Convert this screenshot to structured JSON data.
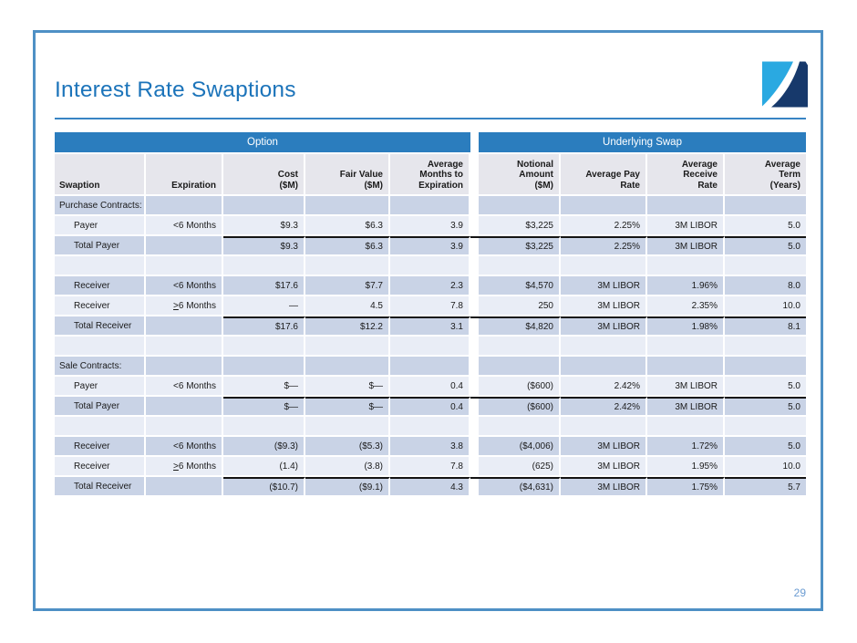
{
  "page": {
    "title": "Interest Rate Swaptions",
    "page_number": "29"
  },
  "colors": {
    "accent_blue": "#2B7DBE",
    "title_blue": "#1C74BA",
    "frame_blue": "#4E90C5",
    "row_dark": "#C9D3E6",
    "row_light": "#E9EDF6",
    "header_gray": "#E6E6EC",
    "logo_light_blue": "#2AA9E1",
    "logo_navy": "#17396B",
    "page_number_blue": "#6B9CD2"
  },
  "table": {
    "group_headers": [
      {
        "label": "Option",
        "span_columns": 5
      },
      {
        "label": "Underlying Swap",
        "span_columns": 4
      }
    ],
    "columns": [
      {
        "key": "swaption",
        "lines": [
          "Swaption"
        ],
        "align": "left"
      },
      {
        "key": "expiration",
        "lines": [
          "Expiration"
        ]
      },
      {
        "key": "cost",
        "lines": [
          "Cost",
          "($M)"
        ]
      },
      {
        "key": "fair_value",
        "lines": [
          "Fair Value",
          "($M)"
        ]
      },
      {
        "key": "avg_months",
        "lines": [
          "Average",
          "Months to",
          "Expiration"
        ]
      },
      {
        "key": "notional",
        "lines": [
          "Notional",
          "Amount",
          "($M)"
        ]
      },
      {
        "key": "pay_rate",
        "lines": [
          "Average Pay",
          "Rate"
        ]
      },
      {
        "key": "receive_rate",
        "lines": [
          "Average",
          "Receive",
          "Rate"
        ]
      },
      {
        "key": "term",
        "lines": [
          "Average",
          "Term",
          "(Years)"
        ]
      }
    ],
    "rows": [
      {
        "swaption": "Purchase Contracts:",
        "section": true
      },
      {
        "swaption": "Payer",
        "indent": true,
        "expiration": "<6 Months",
        "cost": "$9.3",
        "fair_value": "$6.3",
        "avg_months": "3.9",
        "notional": "$3,225",
        "pay_rate": "2.25%",
        "receive_rate": "3M LIBOR",
        "term": "5.0"
      },
      {
        "swaption": "Total Payer",
        "indent": true,
        "cost": "$9.3",
        "fair_value": "$6.3",
        "avg_months": "3.9",
        "notional": "$3,225",
        "pay_rate": "2.25%",
        "receive_rate": "3M LIBOR",
        "term": "5.0",
        "total": true
      },
      {
        "empty": true
      },
      {
        "swaption": "Receiver",
        "indent": true,
        "expiration": "<6 Months",
        "cost": "$17.6",
        "fair_value": "$7.7",
        "avg_months": "2.3",
        "notional": "$4,570",
        "pay_rate": "3M LIBOR",
        "receive_rate": "1.96%",
        "term": "8.0"
      },
      {
        "swaption": "Receiver",
        "indent": true,
        "expiration": ">6 Months",
        "gte": true,
        "cost": "—",
        "fair_value": "4.5",
        "avg_months": "7.8",
        "notional": "250",
        "pay_rate": "3M LIBOR",
        "receive_rate": "2.35%",
        "term": "10.0"
      },
      {
        "swaption": "Total Receiver",
        "indent": true,
        "cost": "$17.6",
        "fair_value": "$12.2",
        "avg_months": "3.1",
        "notional": "$4,820",
        "pay_rate": "3M LIBOR",
        "receive_rate": "1.98%",
        "term": "8.1",
        "total": true
      },
      {
        "empty": true
      },
      {
        "swaption": "Sale Contracts:",
        "section": true
      },
      {
        "swaption": "Payer",
        "indent": true,
        "expiration": "<6 Months",
        "cost": "$—",
        "fair_value": "$—",
        "avg_months": "0.4",
        "notional": "($600)",
        "pay_rate": "2.42%",
        "receive_rate": "3M LIBOR",
        "term": "5.0"
      },
      {
        "swaption": "Total Payer",
        "indent": true,
        "cost": "$—",
        "fair_value": "$—",
        "avg_months": "0.4",
        "notional": "($600)",
        "pay_rate": "2.42%",
        "receive_rate": "3M LIBOR",
        "term": "5.0",
        "total": true
      },
      {
        "empty": true
      },
      {
        "swaption": "Receiver",
        "indent": true,
        "expiration": "<6 Months",
        "cost": "($9.3)",
        "fair_value": "($5.3)",
        "avg_months": "3.8",
        "notional": "($4,006)",
        "pay_rate": "3M LIBOR",
        "receive_rate": "1.72%",
        "term": "5.0"
      },
      {
        "swaption": "Receiver",
        "indent": true,
        "expiration": ">6 Months",
        "gte": true,
        "cost": "(1.4)",
        "fair_value": "(3.8)",
        "avg_months": "7.8",
        "notional": "(625)",
        "pay_rate": "3M LIBOR",
        "receive_rate": "1.95%",
        "term": "10.0"
      },
      {
        "swaption": "Total Receiver",
        "indent": true,
        "cost": "($10.7)",
        "fair_value": "($9.1)",
        "avg_months": "4.3",
        "notional": "($4,631)",
        "pay_rate": "3M LIBOR",
        "receive_rate": "1.75%",
        "term": "5.7",
        "total": true
      }
    ]
  }
}
